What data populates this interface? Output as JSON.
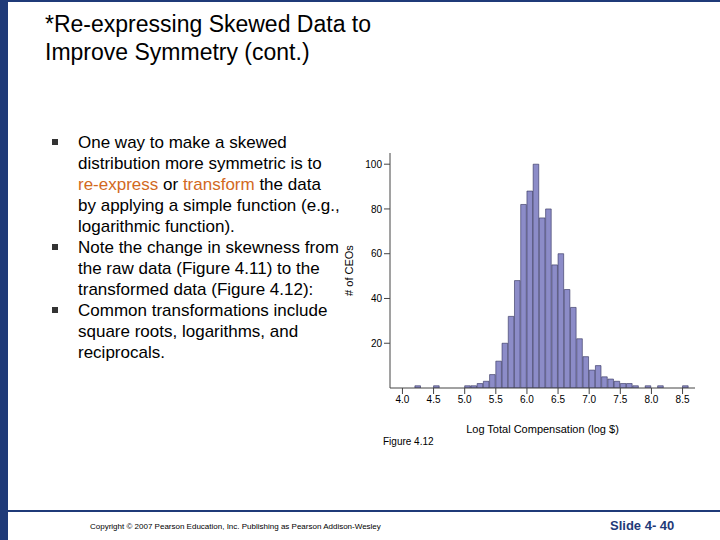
{
  "slide": {
    "title": "*Re-expressing Skewed Data to Improve Symmetry (cont.)",
    "bullets": [
      [
        {
          "text": "One way to make a skewed distribution more symmetric is to ",
          "highlight": false
        },
        {
          "text": "re-express",
          "highlight": true
        },
        {
          "text": " or ",
          "highlight": false
        },
        {
          "text": "transform",
          "highlight": true
        },
        {
          "text": " the data by applying a simple function (e.g., logarithmic function).",
          "highlight": false
        }
      ],
      [
        {
          "text": "Note the change in skewness from the raw data (Figure 4.11) to the transformed data (Figure 4.12):",
          "highlight": false
        }
      ],
      [
        {
          "text": "Common transformations include square roots, logarithms, and reciprocals.",
          "highlight": false
        }
      ]
    ],
    "caption": "Figure 4.12",
    "footer": "Copyright © 2007 Pearson Education, Inc. Publishing as Pearson Addison-Wesley",
    "slide_number": "Slide 4- 40"
  },
  "chart_data": {
    "type": "histogram",
    "bins": [
      4.0,
      4.1,
      4.2,
      4.3,
      4.4,
      4.5,
      4.6,
      4.7,
      4.8,
      4.9,
      5.0,
      5.1,
      5.2,
      5.3,
      5.4,
      5.5,
      5.6,
      5.7,
      5.8,
      5.9,
      6.0,
      6.1,
      6.2,
      6.3,
      6.4,
      6.5,
      6.6,
      6.7,
      6.8,
      6.9,
      7.0,
      7.1,
      7.2,
      7.3,
      7.4,
      7.5,
      7.6,
      7.7,
      7.8,
      7.9,
      8.0,
      8.1,
      8.2,
      8.3,
      8.4,
      8.5,
      8.6
    ],
    "counts": [
      0,
      0,
      1,
      0,
      0,
      1,
      0,
      0,
      0,
      0,
      1,
      1,
      2,
      3,
      6,
      12,
      20,
      32,
      48,
      82,
      88,
      100,
      76,
      80,
      55,
      60,
      44,
      36,
      22,
      14,
      8,
      10,
      5,
      4,
      3,
      2,
      2,
      1,
      0,
      1,
      0,
      1,
      0,
      0,
      0,
      1
    ],
    "x_label": "Log Total Compensation (log $)",
    "y_label": "# of CEOs",
    "xlim": [
      3.8,
      8.7
    ],
    "xticks": [
      {
        "value": 4,
        "label": "4.0"
      },
      4.5,
      {
        "value": 5,
        "label": "5.0"
      },
      5.5,
      {
        "value": 6,
        "label": "6.0"
      },
      6.5,
      {
        "value": 7,
        "label": "7.0"
      },
      7.5,
      {
        "value": 8,
        "label": "8.0"
      },
      8.5
    ],
    "ylim": [
      0,
      105
    ],
    "yticks": [
      20,
      40,
      60,
      80,
      100
    ],
    "color": "#8c8cc8",
    "grid": false
  }
}
